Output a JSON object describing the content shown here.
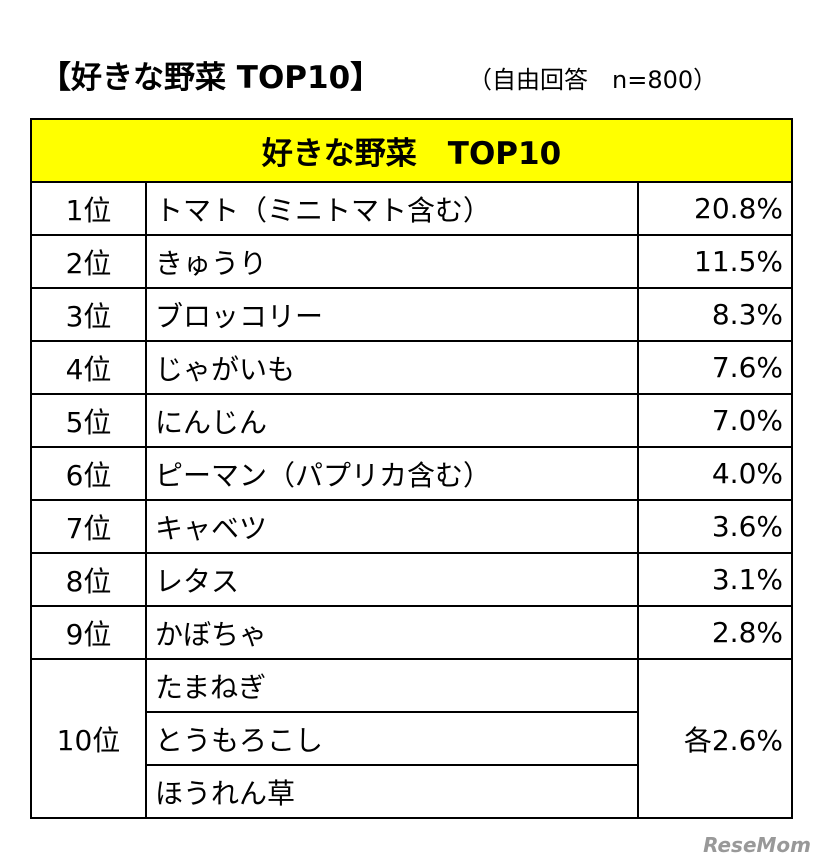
{
  "header": {
    "title": "【好きな野菜 TOP10】",
    "subtitle": "（自由回答　n=800）"
  },
  "table": {
    "title": "好きな野菜　TOP10",
    "rows": [
      {
        "rank": "1位",
        "items": [
          "トマト（ミニトマト含む）"
        ],
        "value": "20.8%"
      },
      {
        "rank": "2位",
        "items": [
          "きゅうり"
        ],
        "value": "11.5%"
      },
      {
        "rank": "3位",
        "items": [
          "ブロッコリー"
        ],
        "value": "8.3%"
      },
      {
        "rank": "4位",
        "items": [
          "じゃがいも"
        ],
        "value": "7.6%"
      },
      {
        "rank": "5位",
        "items": [
          "にんじん"
        ],
        "value": "7.0%"
      },
      {
        "rank": "6位",
        "items": [
          "ピーマン（パプリカ含む）"
        ],
        "value": "4.0%"
      },
      {
        "rank": "7位",
        "items": [
          "キャベツ"
        ],
        "value": "3.6%"
      },
      {
        "rank": "8位",
        "items": [
          "レタス"
        ],
        "value": "3.1%"
      },
      {
        "rank": "9位",
        "items": [
          "かぼちゃ"
        ],
        "value": "2.8%"
      },
      {
        "rank": "10位",
        "items": [
          "たまねぎ",
          "とうもろこし",
          "ほうれん草"
        ],
        "value": "各2.6%"
      }
    ]
  },
  "watermark": "ReseMom"
}
